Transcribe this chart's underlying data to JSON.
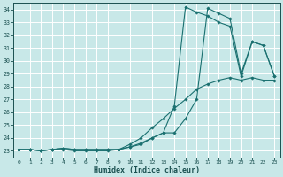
{
  "xlabel": "Humidex (Indice chaleur)",
  "bg_color": "#c8e8e8",
  "grid_color": "#ffffff",
  "line_color": "#1a7070",
  "xlim": [
    -0.5,
    23.5
  ],
  "ylim": [
    22.5,
    34.5
  ],
  "xticks": [
    0,
    1,
    2,
    3,
    4,
    5,
    6,
    7,
    8,
    9,
    10,
    11,
    12,
    13,
    14,
    15,
    16,
    17,
    18,
    19,
    20,
    21,
    22,
    23
  ],
  "yticks": [
    23,
    24,
    25,
    26,
    27,
    28,
    29,
    30,
    31,
    32,
    33,
    34
  ],
  "curve1_x": [
    0,
    1,
    2,
    3,
    4,
    5,
    6,
    7,
    8,
    9,
    10,
    11,
    12,
    13,
    14,
    15,
    16,
    17,
    18,
    19,
    20,
    21,
    22,
    23
  ],
  "curve1_y": [
    23.1,
    23.1,
    23.0,
    23.1,
    23.1,
    23.0,
    23.0,
    23.0,
    23.0,
    23.1,
    23.5,
    24.0,
    24.8,
    25.5,
    26.3,
    27.0,
    27.8,
    28.2,
    28.5,
    28.7,
    28.5,
    28.7,
    28.5,
    28.5
  ],
  "curve2_x": [
    0,
    1,
    2,
    3,
    4,
    5,
    6,
    7,
    8,
    9,
    10,
    11,
    12,
    13,
    14,
    15,
    16,
    17,
    18,
    19,
    20,
    21,
    22,
    23
  ],
  "curve2_y": [
    23.1,
    23.1,
    23.0,
    23.1,
    23.2,
    23.1,
    23.1,
    23.1,
    23.1,
    23.1,
    23.3,
    23.5,
    24.0,
    24.4,
    26.5,
    34.2,
    33.8,
    33.5,
    33.0,
    32.7,
    28.8,
    31.5,
    31.2,
    28.8
  ],
  "curve3_x": [
    0,
    1,
    2,
    3,
    4,
    5,
    6,
    7,
    8,
    9,
    10,
    11,
    12,
    13,
    14,
    15,
    16,
    17,
    18,
    19,
    20,
    21,
    22,
    23
  ],
  "curve3_y": [
    23.1,
    23.1,
    23.0,
    23.1,
    23.2,
    23.1,
    23.1,
    23.1,
    23.1,
    23.1,
    23.3,
    23.6,
    24.0,
    24.4,
    24.4,
    25.5,
    27.0,
    34.1,
    33.7,
    33.3,
    29.0,
    31.5,
    31.2,
    28.8
  ]
}
